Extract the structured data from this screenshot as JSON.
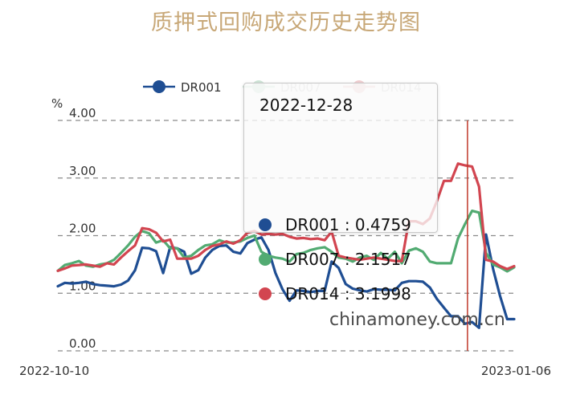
{
  "chart_data": {
    "type": "line",
    "title": "质押式回购成交历史走势图",
    "ylabel": "%",
    "ylim": [
      0,
      4
    ],
    "y_ticks": [
      "0.00",
      "1.00",
      "2.00",
      "3.00",
      "4.00"
    ],
    "x_tick_labels": [
      "2022-10-10",
      "2023-01-06"
    ],
    "x_range": [
      "2022-10-10",
      "2023-01-06"
    ],
    "grid": "horizontal dashed",
    "legend_position": "top-center",
    "series": [
      {
        "name": "DR001",
        "color": "#1f4e93",
        "values": [
          1.12,
          1.18,
          1.17,
          1.18,
          1.2,
          1.16,
          1.14,
          1.13,
          1.12,
          1.15,
          1.22,
          1.4,
          1.79,
          1.78,
          1.73,
          1.35,
          1.8,
          1.78,
          1.72,
          1.34,
          1.4,
          1.62,
          1.75,
          1.82,
          1.83,
          1.72,
          1.69,
          1.87,
          1.93,
          1.97,
          1.75,
          1.35,
          1.07,
          0.87,
          1.05,
          1.04,
          1.02,
          1.04,
          1.04,
          1.55,
          1.44,
          1.16,
          1.08,
          1.05,
          1.03,
          1.07,
          1.06,
          1.06,
          1.05,
          1.18,
          1.21,
          1.21,
          1.2,
          1.1,
          0.9,
          0.75,
          0.6,
          0.6,
          0.47,
          0.5,
          0.4,
          2.02,
          1.42,
          0.95,
          0.55,
          0.55
        ]
      },
      {
        "name": "DR007",
        "color": "#52ab72",
        "values": [
          1.39,
          1.49,
          1.52,
          1.56,
          1.48,
          1.46,
          1.5,
          1.52,
          1.58,
          1.7,
          1.83,
          1.98,
          2.08,
          2.04,
          1.88,
          1.92,
          1.78,
          1.78,
          1.62,
          1.65,
          1.75,
          1.83,
          1.85,
          1.92,
          1.88,
          1.88,
          1.9,
          1.96,
          2.0,
          1.72,
          1.65,
          1.62,
          1.6,
          1.55,
          1.68,
          1.7,
          1.75,
          1.78,
          1.8,
          1.72,
          1.62,
          1.6,
          1.55,
          1.62,
          1.65,
          1.58,
          1.7,
          1.6,
          1.72,
          1.52,
          1.74,
          1.78,
          1.72,
          1.55,
          1.52,
          1.52,
          1.52,
          1.95,
          2.2,
          2.43,
          2.4,
          1.7,
          1.5,
          1.45,
          1.38,
          1.45
        ]
      },
      {
        "name": "DR014",
        "color": "#d24550",
        "values": [
          1.39,
          1.43,
          1.48,
          1.49,
          1.5,
          1.48,
          1.46,
          1.52,
          1.5,
          1.62,
          1.73,
          1.83,
          2.13,
          2.11,
          2.05,
          1.9,
          1.93,
          1.6,
          1.6,
          1.6,
          1.65,
          1.75,
          1.82,
          1.85,
          1.9,
          1.86,
          1.92,
          2.05,
          2.08,
          2.02,
          2.03,
          2.02,
          2.03,
          1.98,
          1.95,
          1.96,
          1.94,
          1.95,
          1.92,
          2.07,
          1.65,
          1.62,
          1.6,
          1.58,
          1.6,
          1.62,
          1.6,
          1.58,
          1.56,
          1.56,
          2.25,
          2.25,
          2.2,
          2.3,
          2.6,
          2.95,
          2.95,
          3.25,
          3.22,
          3.2,
          2.85,
          1.58,
          1.55,
          1.47,
          1.42,
          1.47
        ]
      }
    ],
    "tooltip": {
      "date": "2022-12-28",
      "rows": [
        {
          "label": "DR001 : 0.4759",
          "color": "#1f4e93"
        },
        {
          "label": "DR007 : 2.1517",
          "color": "#52ab72"
        },
        {
          "label": "DR014 : 3.1998",
          "color": "#d24550"
        }
      ]
    },
    "crosshair_color": "#c0392b"
  },
  "watermark": "chinamoney.com.cn"
}
